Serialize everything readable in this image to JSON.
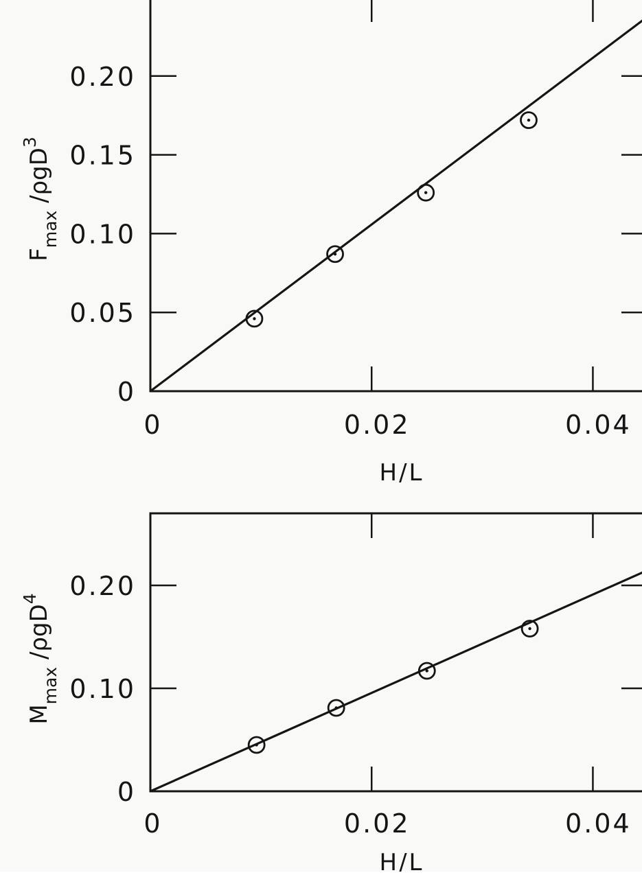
{
  "chart_data": [
    {
      "type": "scatter",
      "title": "",
      "xlabel": "H/L",
      "ylabel": {
        "base": "F",
        "sub": "max",
        "rest": "/ρgD",
        "sup": "3"
      },
      "xlim": [
        0,
        0.045
      ],
      "ylim": [
        0,
        0.25
      ],
      "x_ticks": [
        0,
        0.02,
        0.04
      ],
      "x_tick_labels": [
        "0",
        "0.02",
        "0.04"
      ],
      "y_ticks": [
        0,
        0.05,
        0.1,
        0.15,
        0.2
      ],
      "y_tick_labels": [
        "0",
        "0.05",
        "0.10",
        "0.15",
        "0.20"
      ],
      "grid": false,
      "series": [
        {
          "x": [
            0.0094,
            0.0167,
            0.0249,
            0.0342
          ],
          "y": [
            0.046,
            0.087,
            0.126,
            0.172
          ]
        }
      ],
      "fit_line": {
        "x": [
          0,
          0.045
        ],
        "y": [
          0,
          0.238
        ]
      }
    },
    {
      "type": "scatter",
      "title": "",
      "xlabel": "H/L",
      "ylabel": {
        "base": "M",
        "sub": "max",
        "rest": "/ρgD",
        "sup": "4"
      },
      "xlim": [
        0,
        0.045
      ],
      "ylim": [
        0,
        0.27
      ],
      "x_ticks": [
        0,
        0.02,
        0.04
      ],
      "x_tick_labels": [
        "0",
        "0.02",
        "0.04"
      ],
      "y_ticks": [
        0,
        0.1,
        0.2
      ],
      "y_tick_labels": [
        "0",
        "0.10",
        "0.20"
      ],
      "grid": false,
      "series": [
        {
          "x": [
            0.0096,
            0.0168,
            0.025,
            0.0343
          ],
          "y": [
            0.045,
            0.081,
            0.117,
            0.158
          ]
        }
      ],
      "fit_line": {
        "x": [
          0,
          0.045
        ],
        "y": [
          0,
          0.215
        ]
      }
    }
  ]
}
